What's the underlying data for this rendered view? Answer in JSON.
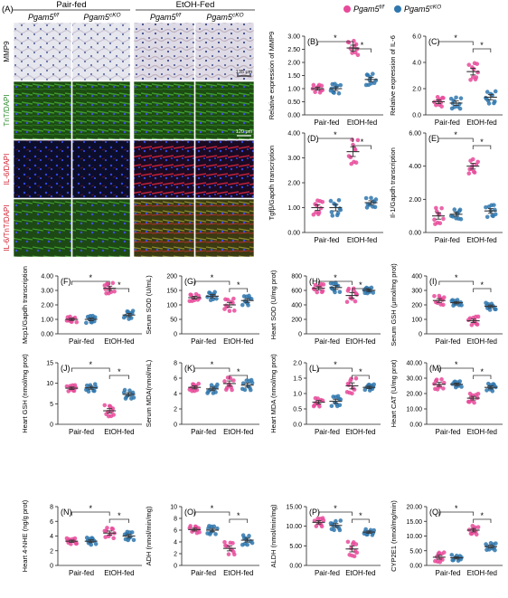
{
  "figure": {
    "panel_a_label": "(A)",
    "groups": [
      "Pair-fed",
      "EtOH-Fed"
    ],
    "genotypes": [
      "Pgam5",
      "Pgam5"
    ],
    "genotype_sup": [
      "f/f",
      "cKO"
    ],
    "row_labels": [
      "MMP9",
      "TnT/DAPI",
      "IL-6/DAPI",
      "IL-6/TnT/DAPI"
    ],
    "scale_bars": [
      "135 μm",
      "120 μm"
    ],
    "legend": {
      "entries": [
        {
          "base": "Pgam5",
          "sup": "f/f",
          "color": "#e84a9a"
        },
        {
          "base": "Pgam5",
          "sup": "cKO",
          "color": "#2f77ae"
        }
      ]
    },
    "colors": {
      "fl": "#e84a9a",
      "cko": "#2f77ae",
      "tissue_ihc": "#dcdce6",
      "tissue_if": "#0d1a08"
    }
  },
  "chart_data": [
    {
      "panel": "(B)",
      "type": "scatter",
      "ylabel": "Relative expression of MMP9",
      "ylim": [
        0,
        3
      ],
      "yticks": [
        "0.00",
        "0.50",
        "1.00",
        "1.50",
        "2.00",
        "2.50",
        "3.00"
      ],
      "categories": [
        "Pair-fed",
        "EtOH-fed"
      ],
      "series": [
        {
          "name": "Pgam5 f/f",
          "values": [
            1.0,
            2.55
          ]
        },
        {
          "name": "Pgam5 cKO",
          "values": [
            1.0,
            1.35
          ]
        }
      ],
      "sig": [
        "*",
        "*"
      ]
    },
    {
      "panel": "(C)",
      "type": "scatter",
      "ylabel": "Relative expression of IL-6",
      "ylim": [
        0,
        6
      ],
      "yticks": [
        "0.0",
        "2.0",
        "4.0",
        "6.0"
      ],
      "categories": [
        "Pair-fed",
        "EtOH-fed"
      ],
      "series": [
        {
          "name": "Pgam5 f/f",
          "values": [
            1.0,
            3.3
          ]
        },
        {
          "name": "Pgam5 cKO",
          "values": [
            0.9,
            1.35
          ]
        }
      ],
      "sig": [
        "*",
        "*"
      ]
    },
    {
      "panel": "(D)",
      "type": "scatter",
      "ylabel": "Tgfβ/Gapdh transcription",
      "ylim": [
        0,
        4
      ],
      "yticks": [
        "0.00",
        "1.00",
        "2.00",
        "3.00",
        "4.00"
      ],
      "categories": [
        "Pair-fed",
        "EtOH-fed"
      ],
      "series": [
        {
          "name": "Pgam5 f/f",
          "values": [
            1.0,
            3.25
          ]
        },
        {
          "name": "Pgam5 cKO",
          "values": [
            1.0,
            1.2
          ]
        }
      ],
      "sig": [
        "*",
        "*"
      ]
    },
    {
      "panel": "(E)",
      "type": "scatter",
      "ylabel": "Il-1/Gapdh transcription",
      "ylim": [
        0,
        6
      ],
      "yticks": [
        "0.00",
        "2.00",
        "4.00",
        "6.00"
      ],
      "categories": [
        "Pair-fed",
        "EtOH-fed"
      ],
      "series": [
        {
          "name": "Pgam5 f/f",
          "values": [
            1.0,
            4.0
          ]
        },
        {
          "name": "Pgam5 cKO",
          "values": [
            1.1,
            1.3
          ]
        }
      ],
      "sig": [
        "*",
        "*"
      ]
    },
    {
      "panel": "(F)",
      "type": "scatter",
      "ylabel": "Mcp1/Gapdh transcription",
      "ylim": [
        0,
        4
      ],
      "yticks": [
        "0.00",
        "1.00",
        "2.00",
        "3.00",
        "4.00"
      ],
      "categories": [
        "Pair-fed",
        "EtOH-fed"
      ],
      "series": [
        {
          "name": "Pgam5 f/f",
          "values": [
            1.0,
            3.15
          ]
        },
        {
          "name": "Pgam5 cKO",
          "values": [
            1.0,
            1.3
          ]
        }
      ],
      "sig": [
        "*",
        "*"
      ]
    },
    {
      "panel": "(G)",
      "type": "scatter",
      "ylabel": "Serum SOD (U/mL)",
      "ylim": [
        0,
        200
      ],
      "yticks": [
        "0",
        "50",
        "100",
        "150",
        "200"
      ],
      "categories": [
        "Pair-fed",
        "EtOH-fed"
      ],
      "series": [
        {
          "name": "Pgam5 f/f",
          "values": [
            125,
            100
          ]
        },
        {
          "name": "Pgam5 cKO",
          "values": [
            130,
            115
          ]
        }
      ],
      "sig": [
        "*",
        "*"
      ]
    },
    {
      "panel": "(H)",
      "type": "scatter",
      "ylabel": "Heart SOD (U/mg prot)",
      "ylim": [
        0,
        800
      ],
      "yticks": [
        "0",
        "200",
        "400",
        "600",
        "800"
      ],
      "categories": [
        "Pair-fed",
        "EtOH-fed"
      ],
      "series": [
        {
          "name": "Pgam5 f/f",
          "values": [
            630,
            530
          ]
        },
        {
          "name": "Pgam5 cKO",
          "values": [
            640,
            600
          ]
        }
      ],
      "sig": [
        "*",
        "*"
      ]
    },
    {
      "panel": "(I)",
      "type": "scatter",
      "ylabel": "Serum GSH (μmol/mg prot)",
      "ylim": [
        0,
        400
      ],
      "yticks": [
        "0",
        "100",
        "200",
        "300",
        "400"
      ],
      "categories": [
        "Pair-fed",
        "EtOH-fed"
      ],
      "series": [
        {
          "name": "Pgam5 f/f",
          "values": [
            230,
            90
          ]
        },
        {
          "name": "Pgam5 cKO",
          "values": [
            215,
            190
          ]
        }
      ],
      "sig": [
        "*",
        "*"
      ]
    },
    {
      "panel": "(J)",
      "type": "scatter",
      "ylabel": "Heart GSH (nmol/mg prot)",
      "ylim": [
        0,
        15
      ],
      "yticks": [
        "0",
        "5",
        "10",
        "15"
      ],
      "categories": [
        "Pair-fed",
        "EtOH-fed"
      ],
      "series": [
        {
          "name": "Pgam5 f/f",
          "values": [
            8.8,
            3.3
          ]
        },
        {
          "name": "Pgam5 cKO",
          "values": [
            8.9,
            7.3
          ]
        }
      ],
      "sig": [
        "*",
        "*"
      ]
    },
    {
      "panel": "(K)",
      "type": "scatter",
      "ylabel": "Serum MDA(nmol/mL)",
      "ylim": [
        0,
        8
      ],
      "yticks": [
        "0",
        "2",
        "4",
        "6",
        "8"
      ],
      "categories": [
        "Pair-fed",
        "EtOH-fed"
      ],
      "series": [
        {
          "name": "Pgam5 f/f",
          "values": [
            4.8,
            5.3
          ]
        },
        {
          "name": "Pgam5 cKO",
          "values": [
            4.6,
            5.1
          ]
        }
      ],
      "sig": [
        "*",
        "*"
      ]
    },
    {
      "panel": "(L)",
      "type": "scatter",
      "ylabel": "Heart MDA (nmol/mg prot)",
      "ylim": [
        0,
        2
      ],
      "yticks": [
        "0.0",
        "0.5",
        "1.0",
        "1.5",
        "2.0"
      ],
      "categories": [
        "Pair-fed",
        "EtOH-fed"
      ],
      "series": [
        {
          "name": "Pgam5 f/f",
          "values": [
            0.72,
            1.25
          ]
        },
        {
          "name": "Pgam5 cKO",
          "values": [
            0.75,
            1.2
          ]
        }
      ],
      "sig": [
        "*",
        "*"
      ]
    },
    {
      "panel": "(M)",
      "type": "scatter",
      "ylabel": "Heart CAT (U/mg prot)",
      "ylim": [
        0,
        40
      ],
      "yticks": [
        "0.00",
        "10.00",
        "20.00",
        "30.00",
        "40.00"
      ],
      "categories": [
        "Pair-fed",
        "EtOH-fed"
      ],
      "series": [
        {
          "name": "Pgam5 f/f",
          "values": [
            26,
            17
          ]
        },
        {
          "name": "Pgam5 cKO",
          "values": [
            26,
            24
          ]
        }
      ],
      "sig": [
        "*",
        "*"
      ]
    },
    {
      "panel": "(N)",
      "type": "scatter",
      "ylabel": "Heart 4-NHE (ng/g prot)",
      "ylim": [
        0,
        8
      ],
      "yticks": [
        "0",
        "2",
        "4",
        "6",
        "8"
      ],
      "categories": [
        "Pair-fed",
        "EtOH-fed"
      ],
      "series": [
        {
          "name": "Pgam5 f/f",
          "values": [
            3.3,
            4.4
          ]
        },
        {
          "name": "Pgam5 cKO",
          "values": [
            3.3,
            4.0
          ]
        }
      ],
      "sig": [
        "*",
        "*"
      ]
    },
    {
      "panel": "(O)",
      "type": "scatter",
      "ylabel": "ADH (nmol/min/mg)",
      "ylim": [
        0,
        10
      ],
      "yticks": [
        "0",
        "2",
        "4",
        "6",
        "8",
        "10"
      ],
      "categories": [
        "Pair-fed",
        "EtOH-fed"
      ],
      "series": [
        {
          "name": "Pgam5 f/f",
          "values": [
            6.1,
            2.9
          ]
        },
        {
          "name": "Pgam5 cKO",
          "values": [
            6.0,
            4.3
          ]
        }
      ],
      "sig": [
        "*",
        "*"
      ]
    },
    {
      "panel": "(P)",
      "type": "scatter",
      "ylabel": "ALDH (nmol/min/mg)",
      "ylim": [
        0,
        15
      ],
      "yticks": [
        "0.00",
        "5.00",
        "10.00",
        "15.00"
      ],
      "categories": [
        "Pair-fed",
        "EtOH-fed"
      ],
      "series": [
        {
          "name": "Pgam5 f/f",
          "values": [
            11,
            4.2
          ]
        },
        {
          "name": "Pgam5 cKO",
          "values": [
            10.2,
            8.5
          ]
        }
      ],
      "sig": [
        "*",
        "*"
      ]
    },
    {
      "panel": "(Q)",
      "type": "scatter",
      "ylabel": "CYP2E1 (nmol/mg/min)",
      "ylim": [
        0,
        20
      ],
      "yticks": [
        "0.00",
        "5.00",
        "10.00",
        "15.00",
        "20.00"
      ],
      "categories": [
        "Pair-fed",
        "EtOH-fed"
      ],
      "series": [
        {
          "name": "Pgam5 f/f",
          "values": [
            2.8,
            12
          ]
        },
        {
          "name": "Pgam5 cKO",
          "values": [
            2.6,
            6.4
          ]
        }
      ],
      "sig": [
        "*",
        "*"
      ]
    }
  ]
}
